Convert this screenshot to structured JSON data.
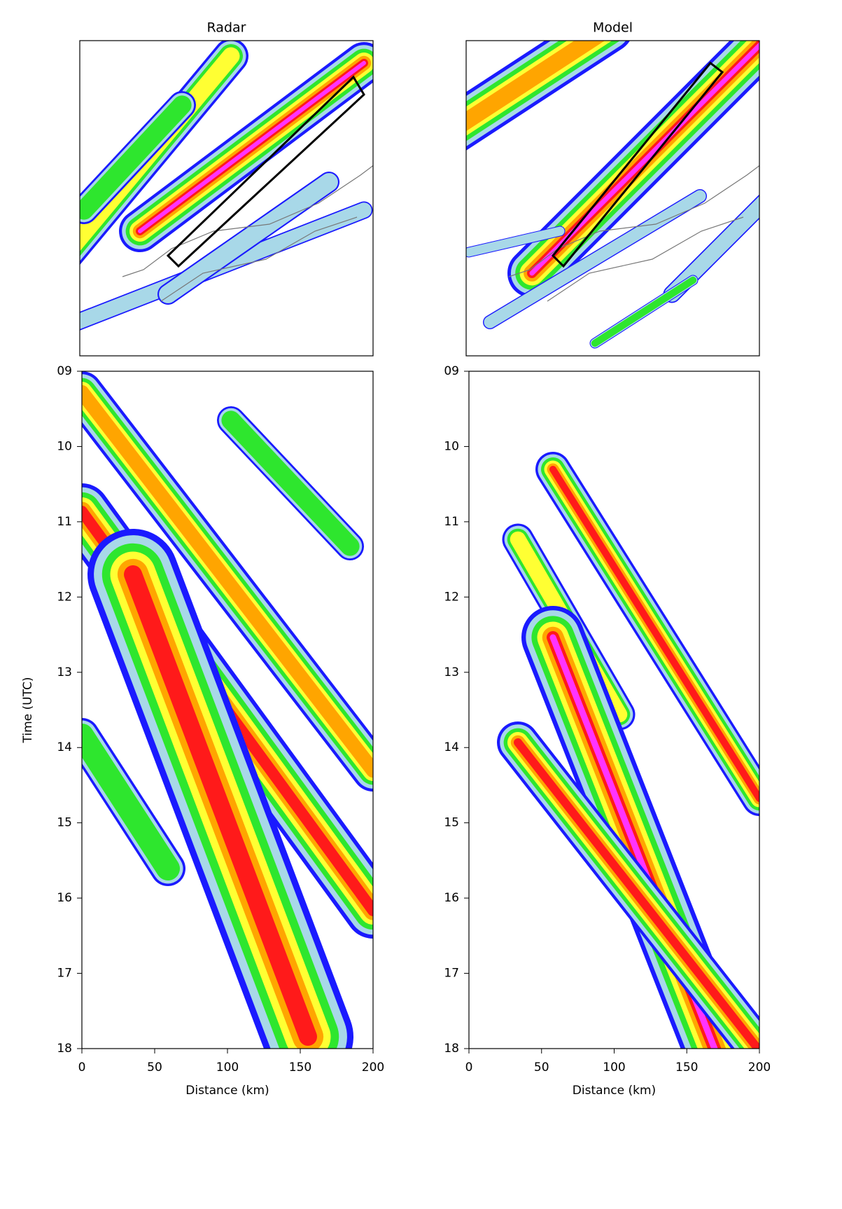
{
  "chart_data": [
    {
      "type": "contour_map",
      "title": "Radar"
    },
    {
      "type": "contour_map",
      "title": "Model"
    },
    {
      "type": "hovmoller",
      "xlabel": "Distance (km)",
      "ylabel": "Time (UTC)",
      "xlim": [
        0,
        200
      ],
      "ylim": [
        18,
        9
      ],
      "xticks": [
        0,
        50,
        100,
        150,
        200
      ],
      "yticks": [
        {
          "value": 9,
          "label": "09"
        },
        10,
        11,
        12,
        13,
        14,
        15,
        16,
        17,
        18
      ]
    },
    {
      "type": "hovmoller",
      "xlabel": "Distance (km)",
      "xlim": [
        0,
        200
      ],
      "ylim": [
        18,
        9
      ],
      "xticks": [
        0,
        50,
        100,
        150,
        200
      ],
      "yticks": [
        {
          "value": 9,
          "label": "09"
        },
        10,
        11,
        12,
        13,
        14,
        15,
        16,
        17,
        18
      ]
    }
  ]
}
